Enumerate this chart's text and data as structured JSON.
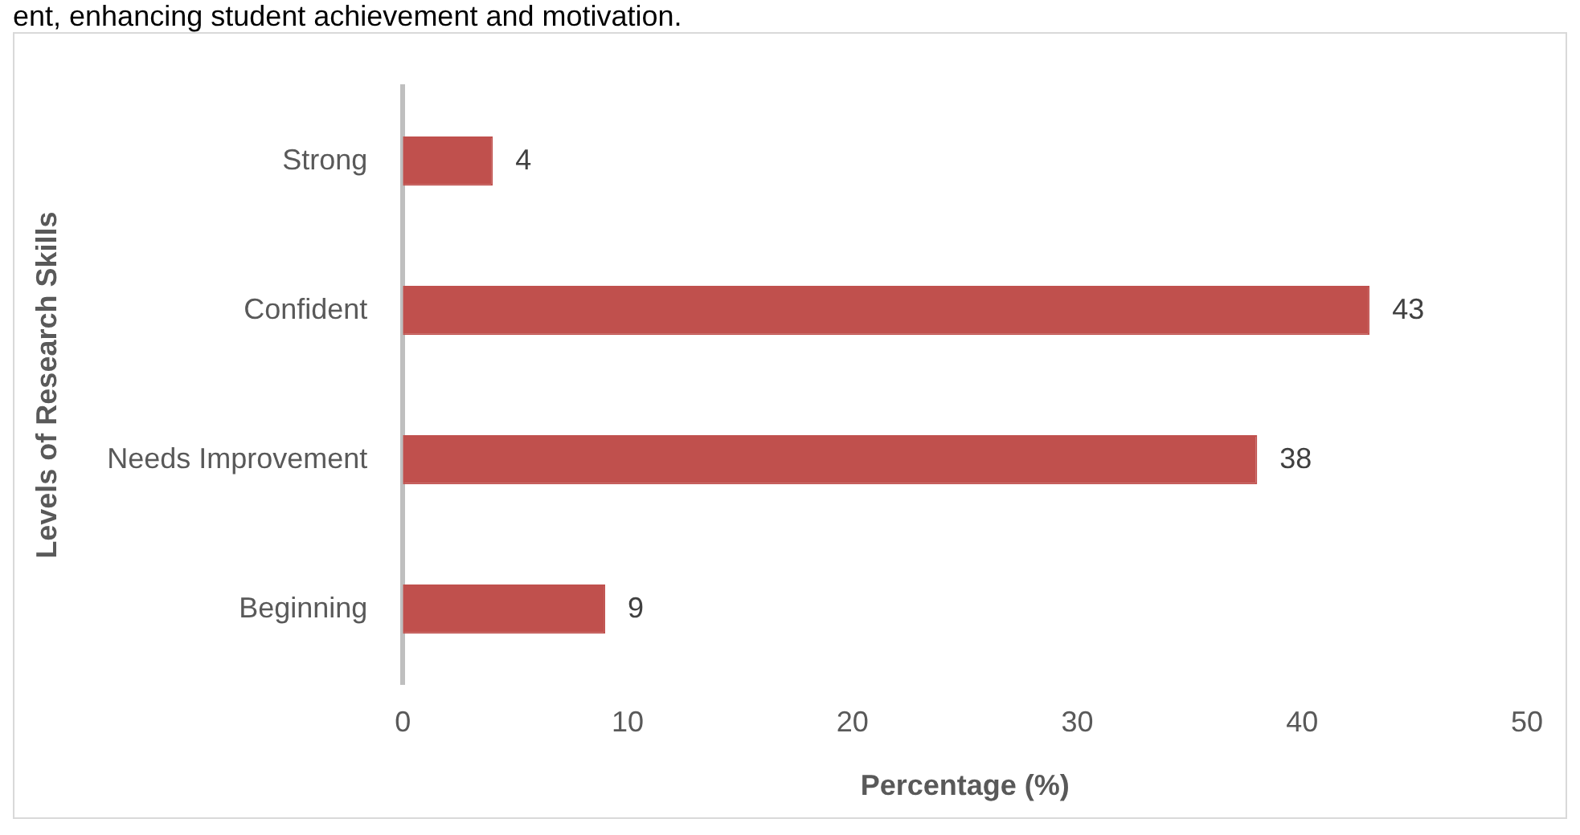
{
  "chart_data": {
    "type": "bar",
    "orientation": "horizontal",
    "annotations": [
      "ent, enhancing student achievement and motivation."
    ],
    "xlabel": "Percentage (%)",
    "ylabel": "Levels of Research Skills",
    "categories": [
      "Strong",
      "Confident",
      "Needs Improvement",
      "Beginning"
    ],
    "values": [
      4,
      43,
      38,
      9
    ],
    "color": "#c0504d",
    "xlim": [
      0,
      50
    ],
    "xticks": [
      0,
      10,
      20,
      30,
      40,
      50
    ],
    "grid": false,
    "legend": false,
    "data_labels": true
  }
}
